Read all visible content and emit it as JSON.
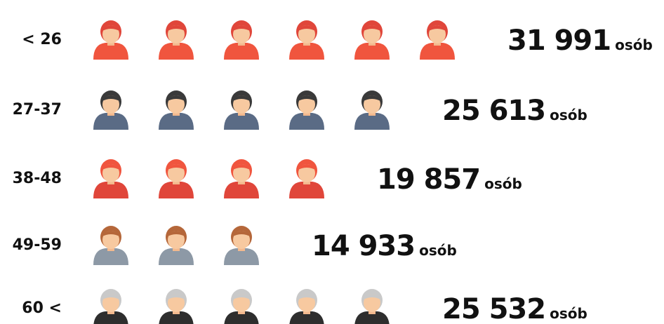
{
  "chart_data": {
    "type": "pictogram",
    "categories": [
      "< 26",
      "27-37",
      "38-48",
      "49-59",
      "60 <"
    ],
    "values": [
      31991,
      25613,
      19857,
      14933,
      25532
    ],
    "value_labels": [
      "31 991",
      "25 613",
      "19 857",
      "14 933",
      "25 532"
    ],
    "unit": "osób",
    "icons": [
      6,
      5,
      4,
      3,
      5
    ],
    "colors": [
      "#f0553e",
      "#5a6b85",
      "#e0463a",
      "#8d99a6",
      "#2e2e2e"
    ],
    "hair_colors": [
      "#e0463a",
      "#3a3a3a",
      "#f0553e",
      "#b5673a",
      "#c9c9c9"
    ]
  }
}
